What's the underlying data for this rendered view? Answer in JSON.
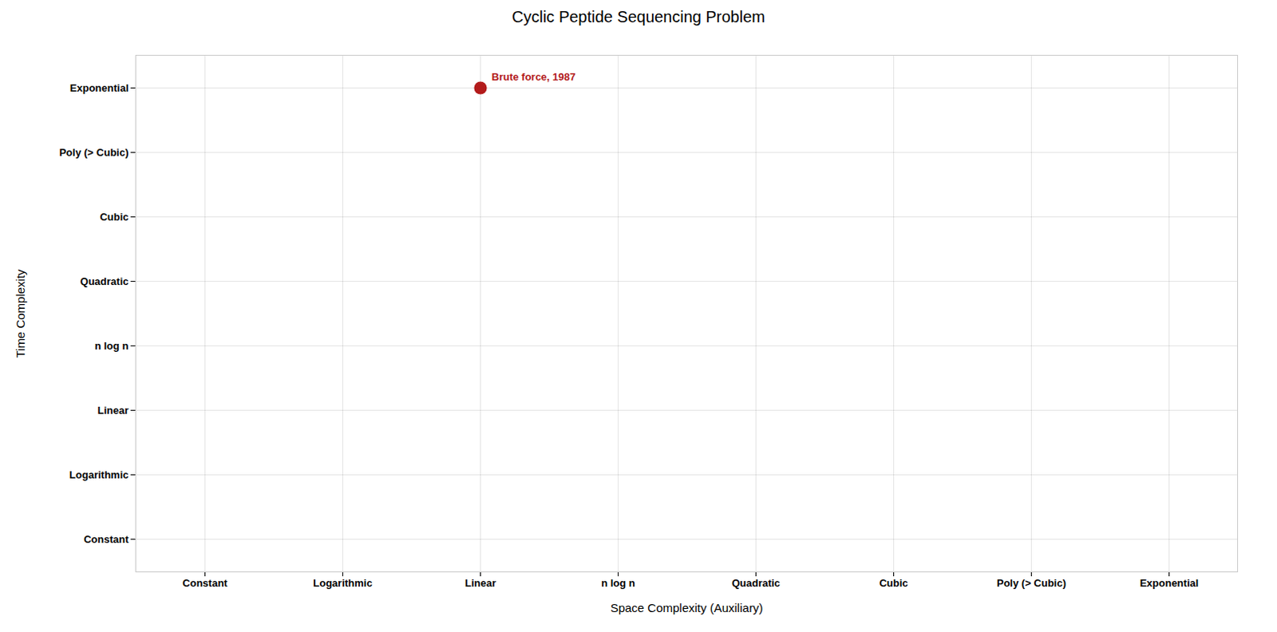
{
  "chart_data": {
    "type": "scatter",
    "title": "Cyclic Peptide Sequencing Problem",
    "xlabel": "Space Complexity (Auxiliary)",
    "ylabel": "Time Complexity",
    "x_categories": [
      "Constant",
      "Logarithmic",
      "Linear",
      "n log n",
      "Quadratic",
      "Cubic",
      "Poly (> Cubic)",
      "Exponential"
    ],
    "y_categories": [
      "Constant",
      "Logarithmic",
      "Linear",
      "n log n",
      "Quadratic",
      "Cubic",
      "Poly (> Cubic)",
      "Exponential"
    ],
    "points": [
      {
        "x": "Linear",
        "y": "Exponential",
        "label": "Brute force, 1987",
        "color": "#b31b1b"
      }
    ],
    "grid": true
  }
}
